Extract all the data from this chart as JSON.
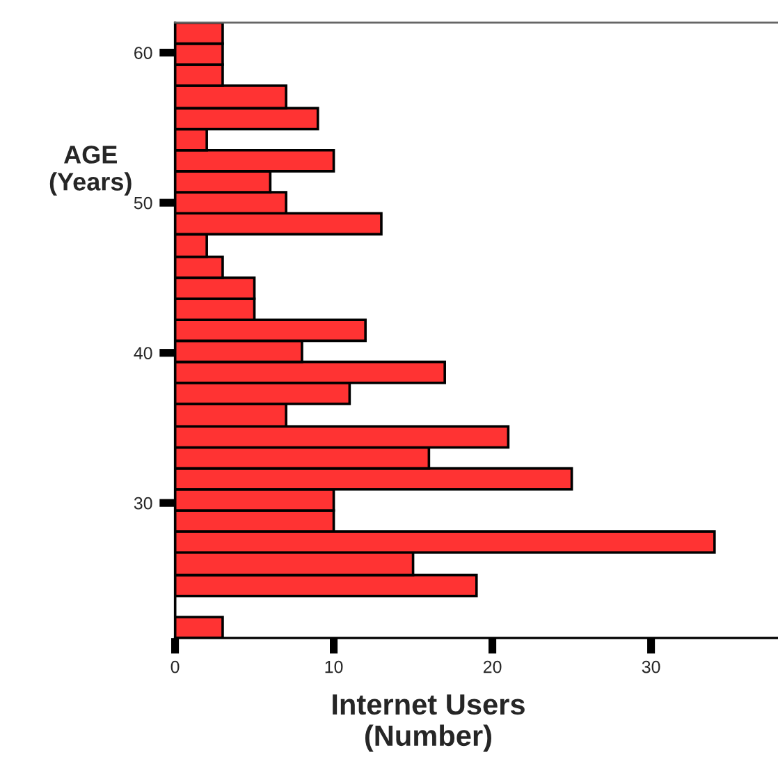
{
  "chart_data": {
    "type": "histogram",
    "orientation": "horizontal",
    "xlabel": "Internet Users\n(Number)",
    "ylabel": "AGE\n(Years)",
    "bins": [
      21,
      22.4,
      23.8,
      25.2,
      26.7,
      28.1,
      29.5,
      30.9,
      32.3,
      33.7,
      35.1,
      36.6,
      38.0,
      39.4,
      40.8,
      42.2,
      43.6,
      45.0,
      46.4,
      47.9,
      49.3,
      50.7,
      52.1,
      53.5,
      54.9,
      56.3,
      57.8,
      59.2,
      60.6,
      62.0
    ],
    "values": [
      3,
      0,
      19,
      15,
      34,
      10,
      10,
      25,
      16,
      21,
      7,
      11,
      17,
      8,
      12,
      5,
      5,
      3,
      2,
      13,
      7,
      6,
      10,
      2,
      9,
      7,
      3,
      3,
      3
    ],
    "color": "#ff3333",
    "xlim": [
      0,
      38
    ],
    "xticks": [
      0,
      10,
      20,
      30
    ],
    "ylim": [
      21,
      62
    ],
    "yticks": [
      30,
      40,
      50,
      60
    ],
    "grid": false
  }
}
